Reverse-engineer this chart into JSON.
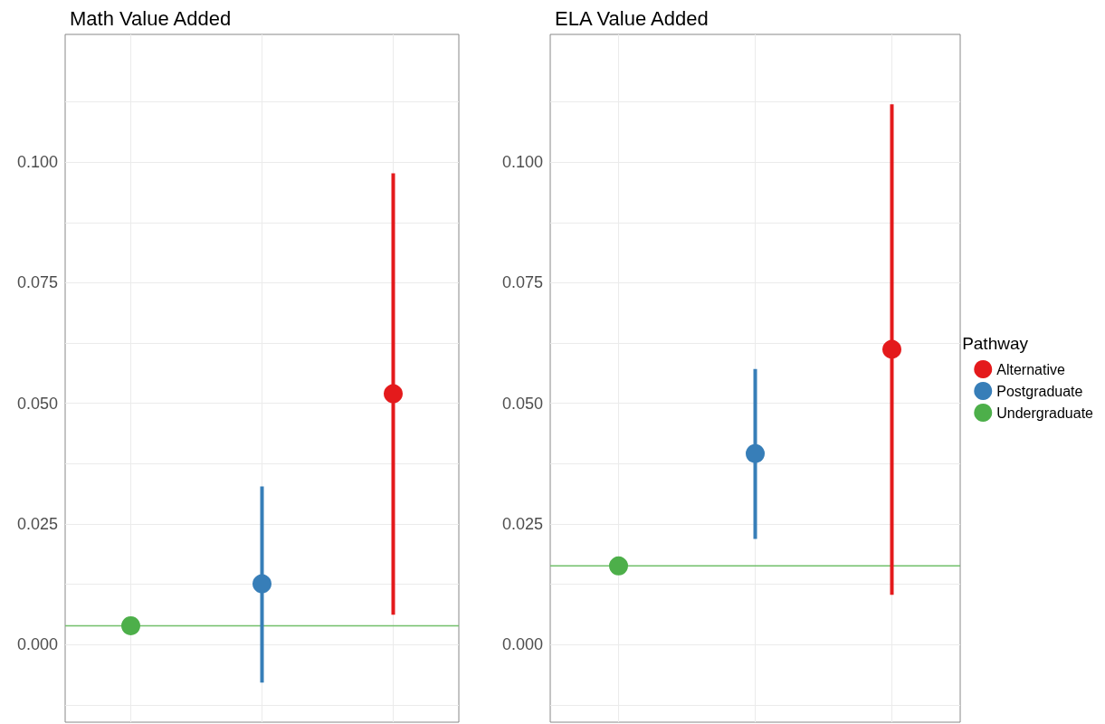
{
  "chart_data": [
    {
      "type": "scatter",
      "title": "Math Value Added",
      "categories": [
        null,
        null,
        null
      ],
      "series": [
        {
          "color": "#e41a1c",
          "values": [
            null,
            null,
            0.052
          ],
          "errors": [
            null,
            null,
            [
              0.0062,
              0.0977
            ]
          ]
        },
        {
          "color": "#377eb8",
          "values": [
            null,
            0.0126,
            null
          ],
          "errors": [
            null,
            [
              -0.0079,
              0.0328
            ],
            null
          ]
        },
        {
          "color": "#4daf4a",
          "values": [
            0.0039,
            null,
            null
          ]
        }
      ],
      "ref_lines": [
        {
          "axis": "y",
          "value": 0.0039,
          "color": "#71bf6a"
        }
      ],
      "ylim": [
        -0.0161,
        0.1265
      ],
      "yticks": [
        {
          "value": -0.0125,
          "label": null
        },
        "0.000",
        {
          "value": 0.0125,
          "label": null
        },
        {
          "value": 0.025,
          "label": "0.025"
        },
        {
          "value": 0.0375,
          "label": null
        },
        {
          "value": 0.05,
          "label": "0.050"
        },
        {
          "value": 0.0625,
          "label": null
        },
        {
          "value": 0.075,
          "label": "0.075"
        },
        {
          "value": 0.0875,
          "label": null
        },
        {
          "value": 0.1,
          "label": "0.100"
        },
        {
          "value": 0.1125,
          "label": null
        }
      ],
      "grid": true,
      "marker": "circle",
      "legend": false
    },
    {
      "type": "scatter",
      "title": "ELA Value Added",
      "categories": [
        null,
        null,
        null
      ],
      "legend_title": "Pathway",
      "series": [
        {
          "name": "Alternative",
          "color": "#e41a1c",
          "values": [
            null,
            null,
            0.0612
          ],
          "errors": [
            null,
            null,
            [
              0.0103,
              0.112
            ]
          ]
        },
        {
          "name": "Postgraduate",
          "color": "#377eb8",
          "values": [
            null,
            0.0396,
            null
          ],
          "errors": [
            null,
            [
              0.0219,
              0.0571
            ],
            null
          ]
        },
        {
          "name": "Undergraduate",
          "color": "#4daf4a",
          "values": [
            0.0163,
            null,
            null
          ]
        }
      ],
      "ref_lines": [
        {
          "axis": "y",
          "value": 0.0163,
          "color": "#71bf6a"
        }
      ],
      "ylim": [
        -0.0161,
        0.1265
      ],
      "yticks": [
        {
          "value": -0.0125,
          "label": null
        },
        "0.000",
        {
          "value": 0.0125,
          "label": null
        },
        {
          "value": 0.025,
          "label": "0.025"
        },
        {
          "value": 0.0375,
          "label": null
        },
        {
          "value": 0.05,
          "label": "0.050"
        },
        {
          "value": 0.0625,
          "label": null
        },
        {
          "value": 0.075,
          "label": "0.075"
        },
        {
          "value": 0.0875,
          "label": null
        },
        {
          "value": 0.1,
          "label": "0.100"
        },
        {
          "value": 0.1125,
          "label": null
        }
      ],
      "grid": true,
      "marker": "circle",
      "legend": "right"
    }
  ]
}
